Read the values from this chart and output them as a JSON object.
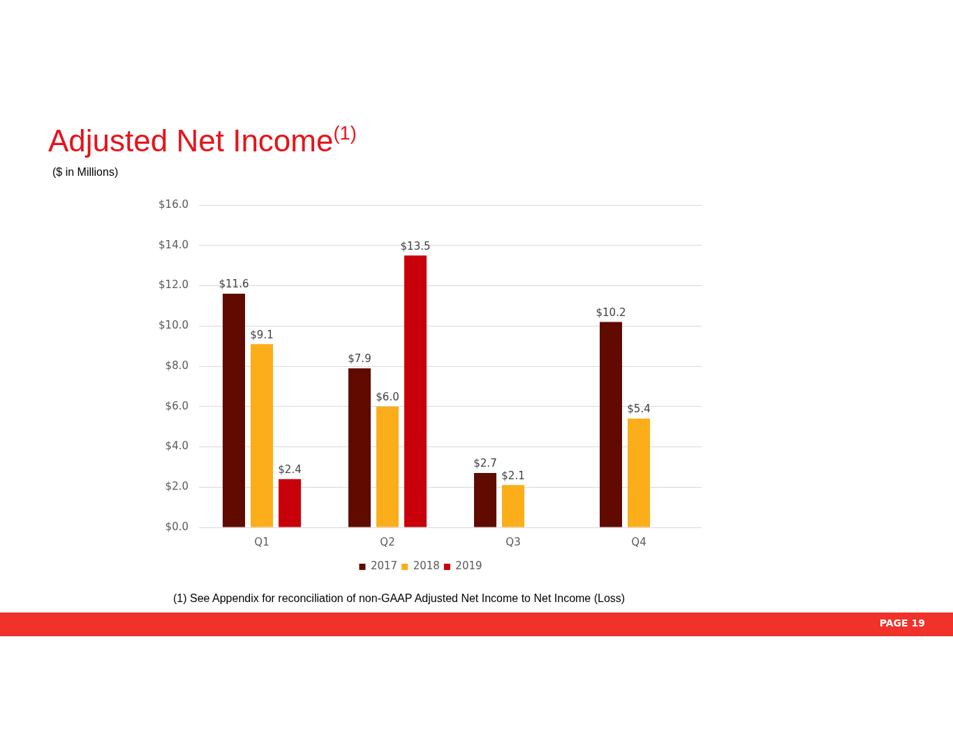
{
  "chart_data": {
    "type": "bar",
    "title": "Adjusted Net Income$^{(1)}$",
    "subtitle": "($ in Millions)",
    "annotations": [
      "(1) See Appendix for reconciliation of non-GAAP Adjusted Net Income to Net Income (Loss)",
      "PAGE 19"
    ],
    "categories": [
      "Q1",
      "Q2",
      "Q3",
      "Q4"
    ],
    "series": [
      {
        "name": "2017",
        "color": "#600a00",
        "values": [
          11.6,
          7.9,
          2.7,
          10.2
        ],
        "value_labels": [
          "$11.6",
          "$7.9",
          "$2.7",
          "$10.2"
        ]
      },
      {
        "name": "2018",
        "color": "#fbae19",
        "values": [
          9.1,
          6.0,
          2.1,
          5.4
        ],
        "value_labels": [
          "$9.1",
          "$6.0",
          "$2.1",
          "$5.4"
        ]
      },
      {
        "name": "2019",
        "color": "#c8000a",
        "values": [
          2.4,
          13.5,
          null,
          null
        ],
        "value_labels": [
          "$2.4",
          "$13.5",
          null,
          null
        ]
      }
    ],
    "ylim": [
      0,
      16
    ],
    "yticks": [
      {
        "value": 0,
        "label": "$0.0"
      },
      {
        "value": 2,
        "label": "$2.0"
      },
      {
        "value": 4,
        "label": "$4.0"
      },
      {
        "value": 6,
        "label": "$6.0"
      },
      {
        "value": 8,
        "label": "$8.0"
      },
      {
        "value": 10,
        "label": "$10.0"
      },
      {
        "value": 12,
        "label": "$12.0"
      },
      {
        "value": 14,
        "label": "$14.0"
      },
      {
        "value": 16,
        "label": "$16.0"
      }
    ],
    "grid": "y",
    "legend": "bottom"
  }
}
